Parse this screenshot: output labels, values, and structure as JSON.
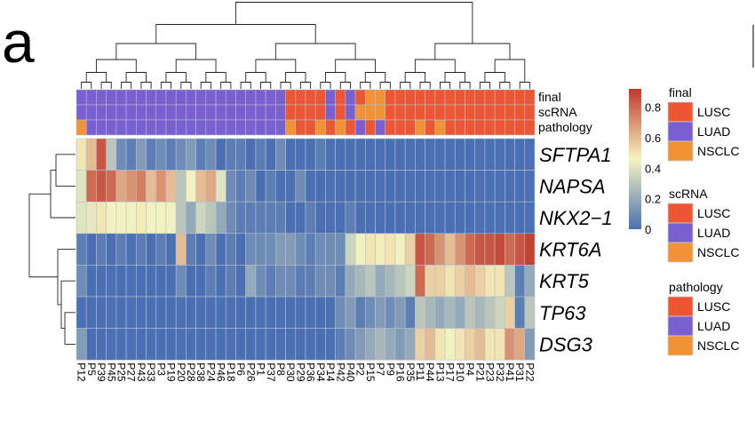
{
  "panel_letter": "a",
  "colors": {
    "LUSC": "#ee5533",
    "LUAD": "#7a5fd0",
    "NSCLC": "#f19334",
    "grid": "#b8c0cc"
  },
  "annotation_tracks": [
    "final",
    "scRNA",
    "pathology"
  ],
  "annotation_codes": {
    "final": "DDDDDDDDDDDDDDDDDDDDDSSSSDSDSNNSSSSSSSSSSSSSSSSSSSSS",
    "scRNA": "DDDDDDDDDDDDDDDDDDDDDSSSSDSDNNNSSSSSSSSSSSSSSSSSSSSS",
    "pathology": "NDDDDDDDDDDDDDDDDDDDDNSSNSNSDSDSSSNSNSSSSSSSSSSSSSSS"
  },
  "genes": [
    "SFTPA1",
    "NAPSA",
    "NKX2−1",
    "KRT6A",
    "KRT5",
    "TP63",
    "DSG3"
  ],
  "column_labels": [
    "P12",
    "P5",
    "P39",
    "P45",
    "P25",
    "P27",
    "P43",
    "P33",
    "P3",
    "P19",
    "P20",
    "P28",
    "P38",
    "P24",
    "P46",
    "P18",
    "P6",
    "P26",
    "P1",
    "P37",
    "P8",
    "P30",
    "P29",
    "P36",
    "P34",
    "P14",
    "P42",
    "P40",
    "P2",
    "P15",
    "P7",
    "P9",
    "P16",
    "P35",
    "P11",
    "P44",
    "P13",
    "P17",
    "P10",
    "P4",
    "P21",
    "P23",
    "P32",
    "P41",
    "P31",
    "P22"
  ],
  "chart_data": {
    "type": "heatmap",
    "colorbar": {
      "ticks": [
        "0.8",
        "0.6",
        "0.4",
        "0.2",
        "0"
      ],
      "range": [
        0,
        0.92
      ],
      "stops": [
        "#4a6fb3",
        "#f5f5c0",
        "#c0392b"
      ]
    },
    "rows": [
      "SFTPA1",
      "NAPSA",
      "NKX2−1",
      "KRT6A",
      "KRT5",
      "TP63",
      "DSG3"
    ],
    "columns": [
      "P12",
      "P5",
      "P39",
      "P45",
      "P25",
      "P27",
      "P43",
      "P33",
      "P3",
      "P19",
      "P20",
      "P28",
      "P38",
      "P24",
      "P46",
      "P18",
      "P6",
      "P26",
      "P1",
      "P37",
      "P8",
      "P30",
      "P29",
      "P36",
      "P34",
      "P14",
      "P42",
      "P40",
      "P2",
      "P15",
      "P7",
      "P9",
      "P16",
      "P35",
      "P11",
      "P44",
      "P13",
      "P17",
      "P10",
      "P4",
      "P21",
      "P23",
      "P32",
      "P41",
      "P31",
      "P22"
    ],
    "values": [
      [
        0.5,
        0.6,
        0.85,
        0.3,
        0.1,
        0.05,
        0.15,
        0.05,
        0.1,
        0.05,
        0.1,
        0.15,
        0.05,
        0.1,
        0,
        0.05,
        0.05,
        0,
        0.05,
        0,
        0.1,
        0,
        0,
        0,
        0.05,
        0,
        0,
        0,
        0,
        0,
        0,
        0,
        0,
        0,
        0,
        0,
        0,
        0,
        0,
        0,
        0,
        0,
        0,
        0,
        0,
        0
      ],
      [
        0.4,
        0.8,
        0.85,
        0.8,
        0.65,
        0.7,
        0.75,
        0.6,
        0.7,
        0.6,
        0.3,
        0.45,
        0.6,
        0.65,
        0.4,
        0.1,
        0.05,
        0.1,
        0,
        0.05,
        0,
        0,
        0.1,
        0,
        0,
        0,
        0,
        0,
        0,
        0,
        0,
        0,
        0,
        0,
        0,
        0,
        0,
        0,
        0,
        0,
        0,
        0,
        0,
        0,
        0,
        0
      ],
      [
        0.4,
        0.42,
        0.5,
        0.45,
        0.45,
        0.45,
        0.48,
        0.45,
        0.45,
        0.45,
        0.3,
        0.2,
        0.35,
        0.3,
        0.2,
        0.1,
        0.05,
        0.05,
        0.05,
        0.05,
        0.05,
        0,
        0,
        0.05,
        0,
        0,
        0,
        0.05,
        0,
        0,
        0,
        0,
        0,
        0,
        0,
        0,
        0,
        0,
        0,
        0,
        0,
        0,
        0,
        0,
        0,
        0
      ],
      [
        0.05,
        0,
        0.05,
        0,
        0.05,
        0,
        0.05,
        0,
        0.05,
        0,
        0.6,
        0.05,
        0,
        0.1,
        0,
        0.05,
        0,
        0.1,
        0.1,
        0.1,
        0.15,
        0.15,
        0.1,
        0.05,
        0.1,
        0.1,
        0.1,
        0.35,
        0.45,
        0.5,
        0.48,
        0.5,
        0.45,
        0.55,
        0.85,
        0.8,
        0.7,
        0.6,
        0.7,
        0.8,
        0.85,
        0.85,
        0.88,
        0.8,
        0.85,
        0.9
      ],
      [
        0.1,
        0,
        0,
        0,
        0,
        0,
        0,
        0,
        0,
        0,
        0.1,
        0,
        0,
        0.05,
        0,
        0.05,
        0,
        0.2,
        0.1,
        0.05,
        0.1,
        0.1,
        0.05,
        0.05,
        0.1,
        0.1,
        0.05,
        0.2,
        0.25,
        0.3,
        0.2,
        0.25,
        0.3,
        0.35,
        0.8,
        0.55,
        0.55,
        0.5,
        0.55,
        0.6,
        0.55,
        0.5,
        0.5,
        0.3,
        0.05,
        0.2
      ],
      [
        0,
        0,
        0,
        0,
        0,
        0,
        0,
        0,
        0,
        0,
        0,
        0,
        0,
        0,
        0,
        0,
        0,
        0,
        0,
        0,
        0,
        0,
        0,
        0,
        0,
        0,
        0.1,
        0.15,
        0.05,
        0.1,
        0.15,
        0.1,
        0.15,
        0.05,
        0.3,
        0.25,
        0.2,
        0.25,
        0.2,
        0.3,
        0.25,
        0.3,
        0.35,
        0.55,
        0.05,
        0.3
      ],
      [
        0.15,
        0,
        0,
        0,
        0,
        0,
        0,
        0,
        0,
        0,
        0,
        0,
        0,
        0,
        0,
        0,
        0,
        0,
        0,
        0,
        0,
        0,
        0,
        0,
        0,
        0,
        0.05,
        0.1,
        0.15,
        0.2,
        0.25,
        0.2,
        0.15,
        0.2,
        0.55,
        0.6,
        0.5,
        0.45,
        0.5,
        0.55,
        0.6,
        0.5,
        0.5,
        0.7,
        0.65,
        0.15
      ]
    ]
  },
  "legends": [
    {
      "title": "final",
      "entries": [
        {
          "label": "LUSC",
          "color": "#ee5533"
        },
        {
          "label": "LUAD",
          "color": "#7a5fd0"
        },
        {
          "label": "NSCLC",
          "color": "#f19334"
        }
      ]
    },
    {
      "title": "scRNA",
      "entries": [
        {
          "label": "LUSC",
          "color": "#ee5533"
        },
        {
          "label": "LUAD",
          "color": "#7a5fd0"
        },
        {
          "label": "NSCLC",
          "color": "#f19334"
        }
      ]
    },
    {
      "title": "pathology",
      "entries": [
        {
          "label": "LUSC",
          "color": "#ee5533"
        },
        {
          "label": "LUAD",
          "color": "#7a5fd0"
        },
        {
          "label": "NSCLC",
          "color": "#f19334"
        }
      ]
    }
  ]
}
